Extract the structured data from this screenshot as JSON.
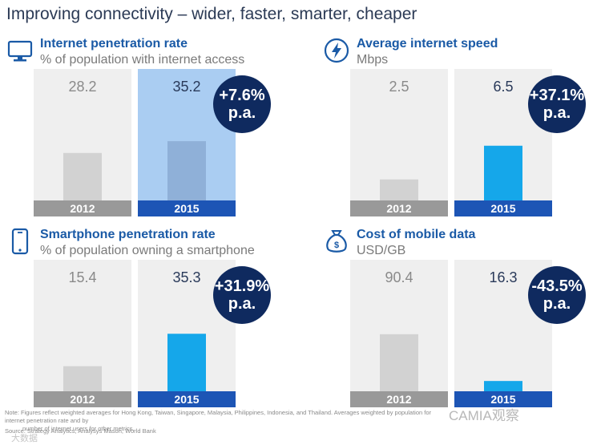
{
  "title": "Improving connectivity – wider, faster, smarter, cheaper",
  "year_labels": [
    "2012",
    "2015"
  ],
  "colors": {
    "grey_bar": "#d2d2d2",
    "blue_bar": "#15a7ea",
    "grey_label": "#999999",
    "blue_label": "#1d55b5",
    "bubble": "#0f2a5f",
    "panel_bg": "#efefef"
  },
  "panels": [
    {
      "title": "Internet penetration rate",
      "subtitle": "% of population with internet access",
      "icon": "monitor-icon",
      "bubble_line1": "+7.6%",
      "bubble_line2": "p.a."
    },
    {
      "title": "Average internet speed",
      "subtitle": "Mbps",
      "icon": "lightning-icon",
      "bubble_line1": "+37.1%",
      "bubble_line2": "p.a."
    },
    {
      "title": "Smartphone penetration rate",
      "subtitle": "% of population owning a smartphone",
      "icon": "smartphone-icon",
      "bubble_line1": "+31.9%",
      "bubble_line2": "p.a."
    },
    {
      "title": "Cost of mobile data",
      "subtitle": "USD/GB",
      "icon": "money-bag-icon",
      "bubble_line1": "-43.5%",
      "bubble_line2": "p.a."
    }
  ],
  "chart_data": [
    {
      "type": "bar",
      "title": "Internet penetration rate",
      "categories": [
        "2012",
        "2015"
      ],
      "values": [
        28.2,
        35.2
      ],
      "value_labels": [
        "28.2",
        "35.2"
      ],
      "ylim": [
        0,
        60
      ]
    },
    {
      "type": "bar",
      "title": "Average internet speed",
      "categories": [
        "2012",
        "2015"
      ],
      "values": [
        2.5,
        6.5
      ],
      "value_labels": [
        "2.5",
        "6.5"
      ],
      "ylim": [
        0,
        12
      ]
    },
    {
      "type": "bar",
      "title": "Smartphone penetration rate",
      "categories": [
        "2012",
        "2015"
      ],
      "values": [
        15.4,
        35.3
      ],
      "value_labels": [
        "15.4",
        "35.3"
      ],
      "ylim": [
        0,
        62
      ]
    },
    {
      "type": "bar",
      "title": "Cost of mobile data",
      "categories": [
        "2012",
        "2015"
      ],
      "values": [
        90.4,
        16.3
      ],
      "value_labels": [
        "90.4",
        "16.3"
      ],
      "ylim": [
        0,
        160
      ]
    }
  ],
  "note_line1": "Note: Figures reflect weighted averages for Hong Kong, Taiwan, Singapore, Malaysia, Philippines, Indonesia, and Thailand. Averages weighted by population for internet penetration rate and by",
  "note_line2": "number of internet users for other metrics.",
  "source": "Source: Strategy Analytics, Analysys Mason, World Bank",
  "watermark": "CAMIA观察",
  "watermark_badge": "大数据"
}
